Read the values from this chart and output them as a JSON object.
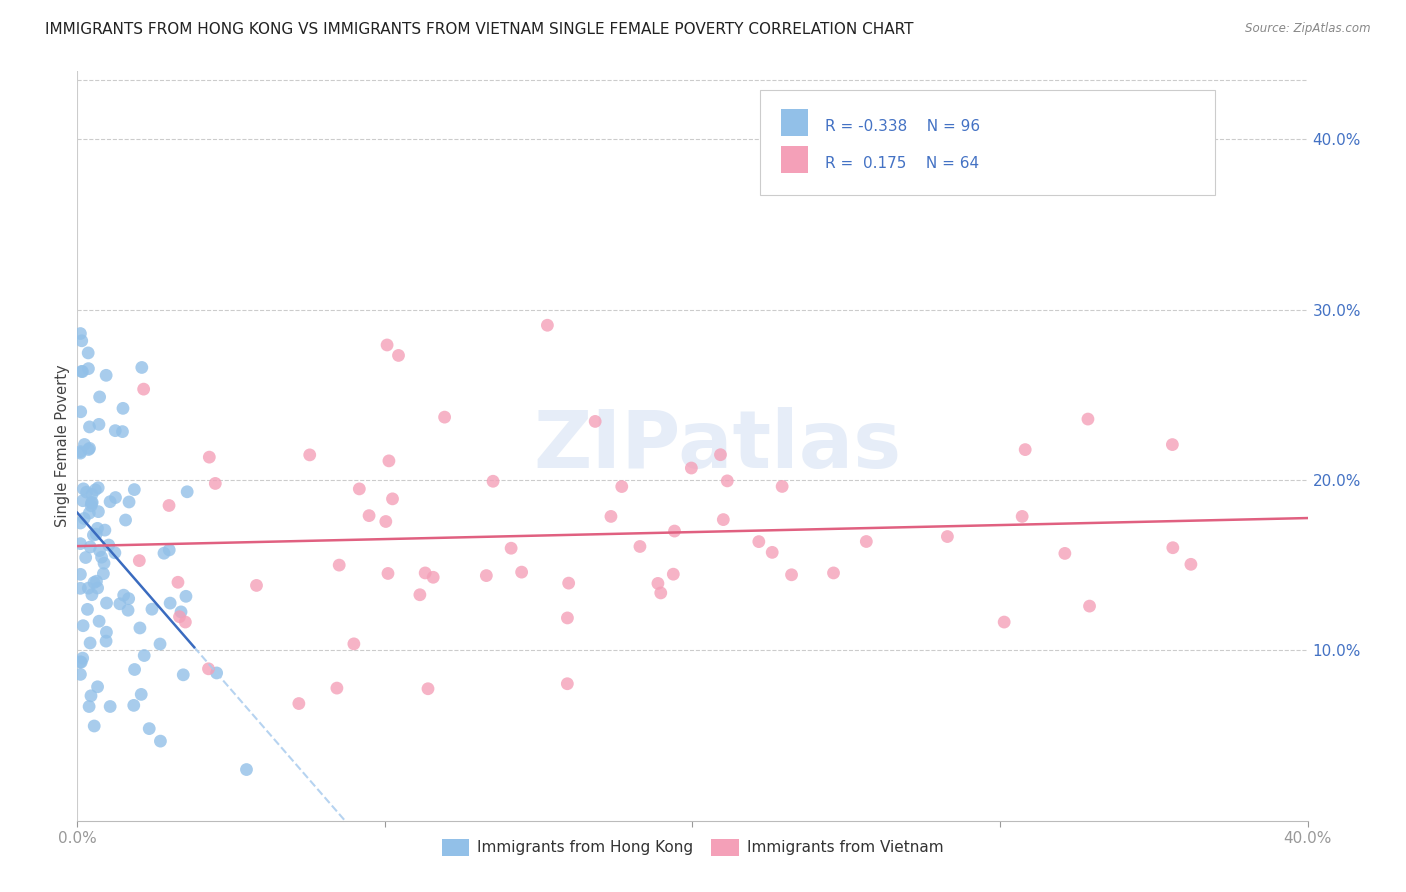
{
  "title": "IMMIGRANTS FROM HONG KONG VS IMMIGRANTS FROM VIETNAM SINGLE FEMALE POVERTY CORRELATION CHART",
  "source": "Source: ZipAtlas.com",
  "ylabel": "Single Female Poverty",
  "hk_R": -0.338,
  "hk_N": 96,
  "vn_R": 0.175,
  "vn_N": 64,
  "legend_label_hk": "Immigrants from Hong Kong",
  "legend_label_vn": "Immigrants from Vietnam",
  "hk_color": "#92C0E8",
  "vn_color": "#F4A0B8",
  "hk_line_color": "#3A6BBF",
  "vn_line_color": "#E06080",
  "hk_dash_color": "#AACCEE",
  "watermark": "ZIPatlas",
  "background_color": "#FFFFFF",
  "xlim": [
    0.0,
    0.4
  ],
  "ylim": [
    0.0,
    0.44
  ],
  "x_ticks": [
    0.0,
    0.1,
    0.2,
    0.3,
    0.4
  ],
  "y_ticks_right": [
    0.1,
    0.2,
    0.3,
    0.4
  ],
  "y_tick_labels_right": [
    "10.0%",
    "20.0%",
    "30.0%",
    "40.0%"
  ]
}
